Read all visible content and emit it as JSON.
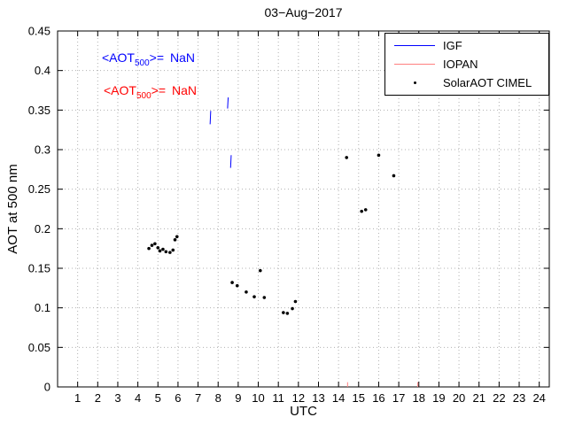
{
  "figure": {
    "title": "03−Aug−2017",
    "xlabel": "UTC",
    "ylabel": "AOT at 500 nm"
  },
  "annotations": [
    {
      "prefix": "<AOT",
      "subscript": "500",
      "suffix": ">=",
      "value": "NaN",
      "color": "#0000ff"
    },
    {
      "prefix": "<AOT",
      "subscript": "500",
      "suffix": ">=",
      "value": "NaN",
      "color": "#ff0000"
    }
  ],
  "chart_data": {
    "type": "scatter",
    "title": "03−Aug−2017",
    "xlabel": "UTC",
    "ylabel": "AOT at 500 nm",
    "xlim": [
      0,
      24.5
    ],
    "ylim": [
      0,
      0.45
    ],
    "xticks": [
      1,
      2,
      3,
      4,
      5,
      6,
      7,
      8,
      9,
      10,
      11,
      12,
      13,
      14,
      15,
      16,
      17,
      18,
      19,
      20,
      21,
      22,
      23,
      24
    ],
    "yticks": [
      0,
      0.05,
      0.1,
      0.15,
      0.2,
      0.25,
      0.3,
      0.35,
      0.4,
      0.45
    ],
    "grid": true,
    "grid_color": "#b0b0b0",
    "legend_position": "top-right",
    "legend": [
      {
        "label": "IGF",
        "color": "#0000ff",
        "marker": "line"
      },
      {
        "label": "IOPAN",
        "color": "#ff8080",
        "marker": "line"
      },
      {
        "label": "SolarAOT CIMEL",
        "color": "#000000",
        "marker": "dot"
      }
    ],
    "series": [
      {
        "name": "IGF",
        "color": "#0000ff",
        "style": "vertical-segments",
        "segments": [
          [
            [
              7.6,
              0.332
            ],
            [
              7.63,
              0.349
            ]
          ],
          [
            [
              8.47,
              0.352
            ],
            [
              8.5,
              0.366
            ]
          ],
          [
            [
              8.62,
              0.277
            ],
            [
              8.65,
              0.293
            ]
          ]
        ]
      },
      {
        "name": "IOPAN",
        "color": "#ff8080",
        "style": "vertical-segments",
        "segments": [
          [
            [
              14.45,
              0.0
            ],
            [
              14.45,
              0.006
            ]
          ],
          [
            [
              17.95,
              0.0
            ],
            [
              17.95,
              0.006
            ]
          ]
        ]
      },
      {
        "name": "SolarAOT CIMEL",
        "color": "#000000",
        "style": "points",
        "points": [
          [
            4.55,
            0.175
          ],
          [
            4.7,
            0.179
          ],
          [
            4.85,
            0.181
          ],
          [
            5.0,
            0.176
          ],
          [
            5.1,
            0.172
          ],
          [
            5.25,
            0.174
          ],
          [
            5.4,
            0.171
          ],
          [
            5.6,
            0.17
          ],
          [
            5.75,
            0.173
          ],
          [
            5.85,
            0.186
          ],
          [
            5.95,
            0.19
          ],
          [
            8.7,
            0.132
          ],
          [
            8.95,
            0.128
          ],
          [
            9.4,
            0.12
          ],
          [
            9.8,
            0.114
          ],
          [
            10.1,
            0.147
          ],
          [
            10.3,
            0.113
          ],
          [
            11.25,
            0.094
          ],
          [
            11.45,
            0.093
          ],
          [
            11.7,
            0.099
          ],
          [
            11.85,
            0.108
          ],
          [
            14.4,
            0.29
          ],
          [
            15.15,
            0.222
          ],
          [
            15.35,
            0.224
          ],
          [
            16.0,
            0.293
          ],
          [
            16.75,
            0.267
          ]
        ]
      }
    ]
  }
}
